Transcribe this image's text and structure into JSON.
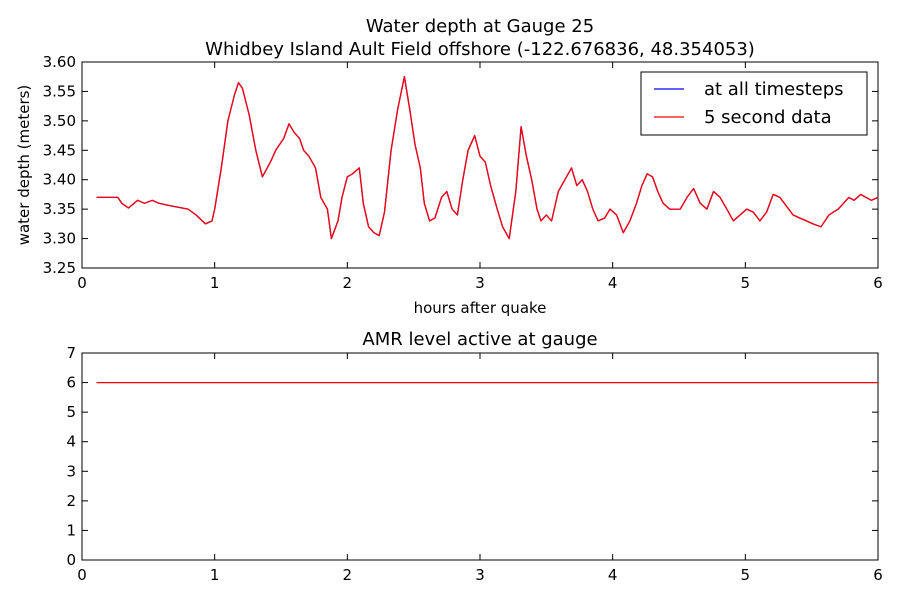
{
  "figure": {
    "background": "#ffffff"
  },
  "chart_data": [
    {
      "type": "line",
      "title": "Water depth at Gauge 25",
      "subtitle": "Whidbey Island Ault Field offshore  (-122.676836, 48.354053)",
      "xlabel": "hours after quake",
      "ylabel": "water depth (meters)",
      "xlim": [
        0,
        6
      ],
      "ylim": [
        3.25,
        3.6
      ],
      "xticks": [
        "0",
        "1",
        "2",
        "3",
        "4",
        "5",
        "6"
      ],
      "yticks": [
        "3.25",
        "3.30",
        "3.35",
        "3.40",
        "3.45",
        "3.50",
        "3.55",
        "3.60"
      ],
      "grid": false,
      "legend_position": "top-right",
      "series": [
        {
          "name": "at all timesteps",
          "color": "#0000ff",
          "x": [
            0.11,
            0.27,
            0.3,
            0.35,
            0.42,
            0.47,
            0.53,
            0.58,
            0.66,
            0.8,
            0.86,
            0.93,
            0.98,
            1.0,
            1.05,
            1.1,
            1.15,
            1.18,
            1.21,
            1.26,
            1.31,
            1.36,
            1.42,
            1.46,
            1.52,
            1.56,
            1.6,
            1.64,
            1.67,
            1.71,
            1.76,
            1.8,
            1.85,
            1.88,
            1.93,
            1.96,
            2.0,
            2.04,
            2.09,
            2.12,
            2.16,
            2.2,
            2.24,
            2.28,
            2.33,
            2.38,
            2.43,
            2.47,
            2.51,
            2.55,
            2.58,
            2.62,
            2.66,
            2.71,
            2.75,
            2.79,
            2.83,
            2.87,
            2.91,
            2.96,
            3.0,
            3.04,
            3.08,
            3.13,
            3.17,
            3.22,
            3.27,
            3.31,
            3.35,
            3.39,
            3.43,
            3.46,
            3.5,
            3.54,
            3.59,
            3.64,
            3.69,
            3.73,
            3.77,
            3.81,
            3.85,
            3.89,
            3.94,
            3.98,
            4.03,
            4.08,
            4.13,
            4.18,
            4.22,
            4.26,
            4.3,
            4.34,
            4.38,
            4.43,
            4.47,
            4.51,
            4.56,
            4.61,
            4.66,
            4.71,
            4.76,
            4.81,
            4.86,
            4.91,
            4.96,
            5.01,
            5.06,
            5.11,
            5.16,
            5.21,
            5.26,
            5.31,
            5.36,
            5.41,
            5.46,
            5.51,
            5.57,
            5.63,
            5.7,
            5.74,
            5.78,
            5.82,
            5.87,
            5.91,
            5.95,
            6.0
          ],
          "y": [
            3.37,
            3.37,
            3.36,
            3.352,
            3.365,
            3.36,
            3.365,
            3.36,
            3.356,
            3.35,
            3.34,
            3.325,
            3.33,
            3.35,
            3.42,
            3.5,
            3.545,
            3.565,
            3.555,
            3.51,
            3.45,
            3.405,
            3.43,
            3.45,
            3.47,
            3.495,
            3.48,
            3.47,
            3.45,
            3.44,
            3.42,
            3.37,
            3.35,
            3.3,
            3.33,
            3.37,
            3.405,
            3.41,
            3.42,
            3.36,
            3.32,
            3.31,
            3.305,
            3.345,
            3.45,
            3.52,
            3.575,
            3.52,
            3.46,
            3.42,
            3.36,
            3.33,
            3.335,
            3.37,
            3.38,
            3.35,
            3.34,
            3.4,
            3.45,
            3.475,
            3.44,
            3.43,
            3.39,
            3.35,
            3.32,
            3.3,
            3.38,
            3.49,
            3.44,
            3.4,
            3.35,
            3.33,
            3.34,
            3.33,
            3.38,
            3.4,
            3.42,
            3.39,
            3.4,
            3.38,
            3.35,
            3.33,
            3.335,
            3.35,
            3.34,
            3.31,
            3.33,
            3.36,
            3.39,
            3.41,
            3.405,
            3.38,
            3.36,
            3.35,
            3.35,
            3.35,
            3.37,
            3.385,
            3.36,
            3.35,
            3.38,
            3.37,
            3.35,
            3.33,
            3.34,
            3.35,
            3.345,
            3.33,
            3.345,
            3.375,
            3.37,
            3.355,
            3.34,
            3.335,
            3.33,
            3.325,
            3.32,
            3.34,
            3.35,
            3.36,
            3.37,
            3.365,
            3.375,
            3.37,
            3.365,
            3.37
          ],
          "line_style": "solid"
        },
        {
          "name": "5 second data",
          "color": "#ff0000",
          "x": [
            0.11,
            0.27,
            0.3,
            0.35,
            0.42,
            0.47,
            0.53,
            0.58,
            0.66,
            0.8,
            0.86,
            0.93,
            0.98,
            1.0,
            1.05,
            1.1,
            1.15,
            1.18,
            1.21,
            1.26,
            1.31,
            1.36,
            1.42,
            1.46,
            1.52,
            1.56,
            1.6,
            1.64,
            1.67,
            1.71,
            1.76,
            1.8,
            1.85,
            1.88,
            1.93,
            1.96,
            2.0,
            2.04,
            2.09,
            2.12,
            2.16,
            2.2,
            2.24,
            2.28,
            2.33,
            2.38,
            2.43,
            2.47,
            2.51,
            2.55,
            2.58,
            2.62,
            2.66,
            2.71,
            2.75,
            2.79,
            2.83,
            2.87,
            2.91,
            2.96,
            3.0,
            3.04,
            3.08,
            3.13,
            3.17,
            3.22,
            3.27,
            3.31,
            3.35,
            3.39,
            3.43,
            3.46,
            3.5,
            3.54,
            3.59,
            3.64,
            3.69,
            3.73,
            3.77,
            3.81,
            3.85,
            3.89,
            3.94,
            3.98,
            4.03,
            4.08,
            4.13,
            4.18,
            4.22,
            4.26,
            4.3,
            4.34,
            4.38,
            4.43,
            4.47,
            4.51,
            4.56,
            4.61,
            4.66,
            4.71,
            4.76,
            4.81,
            4.86,
            4.91,
            4.96,
            5.01,
            5.06,
            5.11,
            5.16,
            5.21,
            5.26,
            5.31,
            5.36,
            5.41,
            5.46,
            5.51,
            5.57,
            5.63,
            5.7,
            5.74,
            5.78,
            5.82,
            5.87,
            5.91,
            5.95,
            6.0
          ],
          "y": [
            3.37,
            3.37,
            3.36,
            3.352,
            3.365,
            3.36,
            3.365,
            3.36,
            3.356,
            3.35,
            3.34,
            3.325,
            3.33,
            3.35,
            3.42,
            3.5,
            3.545,
            3.565,
            3.555,
            3.51,
            3.45,
            3.405,
            3.43,
            3.45,
            3.47,
            3.495,
            3.48,
            3.47,
            3.45,
            3.44,
            3.42,
            3.37,
            3.35,
            3.3,
            3.33,
            3.37,
            3.405,
            3.41,
            3.42,
            3.36,
            3.32,
            3.31,
            3.305,
            3.345,
            3.45,
            3.52,
            3.575,
            3.52,
            3.46,
            3.42,
            3.36,
            3.33,
            3.335,
            3.37,
            3.38,
            3.35,
            3.34,
            3.4,
            3.45,
            3.475,
            3.44,
            3.43,
            3.39,
            3.35,
            3.32,
            3.3,
            3.38,
            3.49,
            3.44,
            3.4,
            3.35,
            3.33,
            3.34,
            3.33,
            3.38,
            3.4,
            3.42,
            3.39,
            3.4,
            3.38,
            3.35,
            3.33,
            3.335,
            3.35,
            3.34,
            3.31,
            3.33,
            3.36,
            3.39,
            3.41,
            3.405,
            3.38,
            3.36,
            3.35,
            3.35,
            3.35,
            3.37,
            3.385,
            3.36,
            3.35,
            3.38,
            3.37,
            3.35,
            3.33,
            3.34,
            3.35,
            3.345,
            3.33,
            3.345,
            3.375,
            3.37,
            3.355,
            3.34,
            3.335,
            3.33,
            3.325,
            3.32,
            3.34,
            3.35,
            3.36,
            3.37,
            3.365,
            3.375,
            3.37,
            3.365,
            3.37
          ],
          "line_style": "solid"
        }
      ]
    },
    {
      "type": "line",
      "title": "AMR level active at gauge",
      "xlabel": "",
      "ylabel": "",
      "xlim": [
        0,
        6
      ],
      "ylim": [
        0,
        7
      ],
      "xticks": [
        "0",
        "1",
        "2",
        "3",
        "4",
        "5",
        "6"
      ],
      "yticks": [
        "0",
        "1",
        "2",
        "3",
        "4",
        "5",
        "6",
        "7"
      ],
      "grid": false,
      "series": [
        {
          "color": "#ff0000",
          "x": [
            0.11,
            6.0
          ],
          "y": [
            6,
            6
          ],
          "line_style": "solid"
        }
      ]
    }
  ]
}
